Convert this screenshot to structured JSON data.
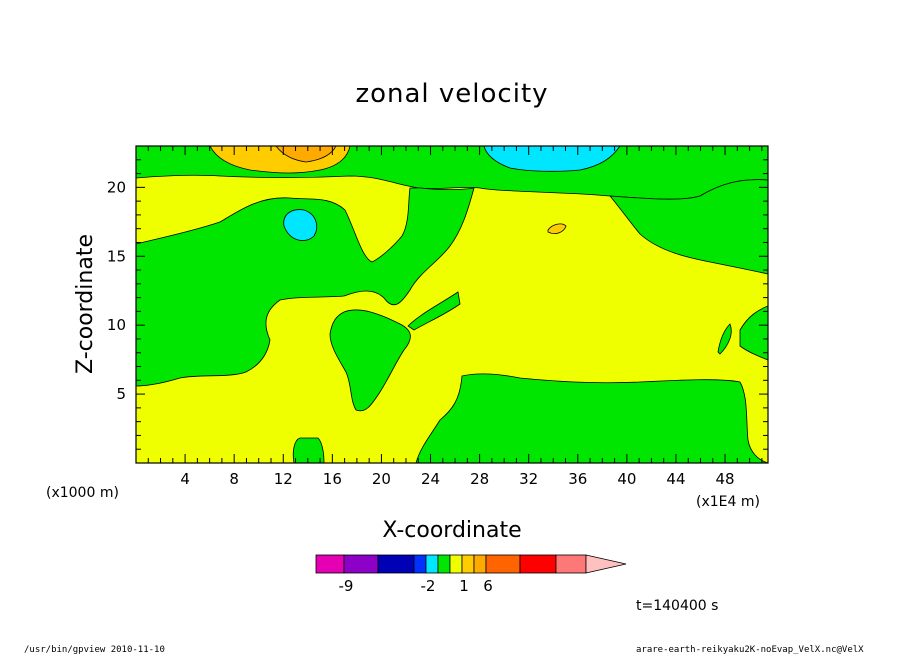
{
  "chart_data": {
    "type": "heatmap",
    "title": "zonal velocity",
    "xlabel": "X-coordinate",
    "ylabel": "Z-coordinate",
    "x_unit_left": "(x1000 m)",
    "x_unit_right": "(x1E4 m)",
    "xlim": [
      0,
      51.5
    ],
    "ylim": [
      0,
      23
    ],
    "x_ticks": [
      "4",
      "8",
      "12",
      "16",
      "20",
      "24",
      "28",
      "32",
      "36",
      "40",
      "44",
      "48"
    ],
    "y_ticks": [
      "5",
      "10",
      "15",
      "20"
    ],
    "colorbar": {
      "colors": [
        "#e600b4",
        "#8c00c8",
        "#0000b4",
        "#0032ff",
        "#00e6ff",
        "#00e600",
        "#f0ff00",
        "#ffcc00",
        "#ffaa00",
        "#ff6400",
        "#ff0000",
        "#ff7878",
        "#ffc0c0"
      ],
      "labels": [
        "-9",
        "-2",
        "1",
        "6"
      ]
    },
    "time_label": "t=140400 s",
    "regions": [
      {
        "color": "#f0ff00",
        "label": "yellow background (0..1)"
      },
      {
        "color": "#00e600",
        "label": "green (-1..0)"
      },
      {
        "color": "#ffcc00",
        "label": "light orange (1..2)"
      },
      {
        "color": "#ffaa00",
        "label": "orange (2..3)"
      },
      {
        "color": "#00e6ff",
        "label": "cyan (-2..-1)"
      }
    ]
  },
  "footer": {
    "left": "/usr/bin/gpview  2010-11-10",
    "right": "arare-earth-reikyaku2K-noEvap_VelX.nc@VelX"
  }
}
